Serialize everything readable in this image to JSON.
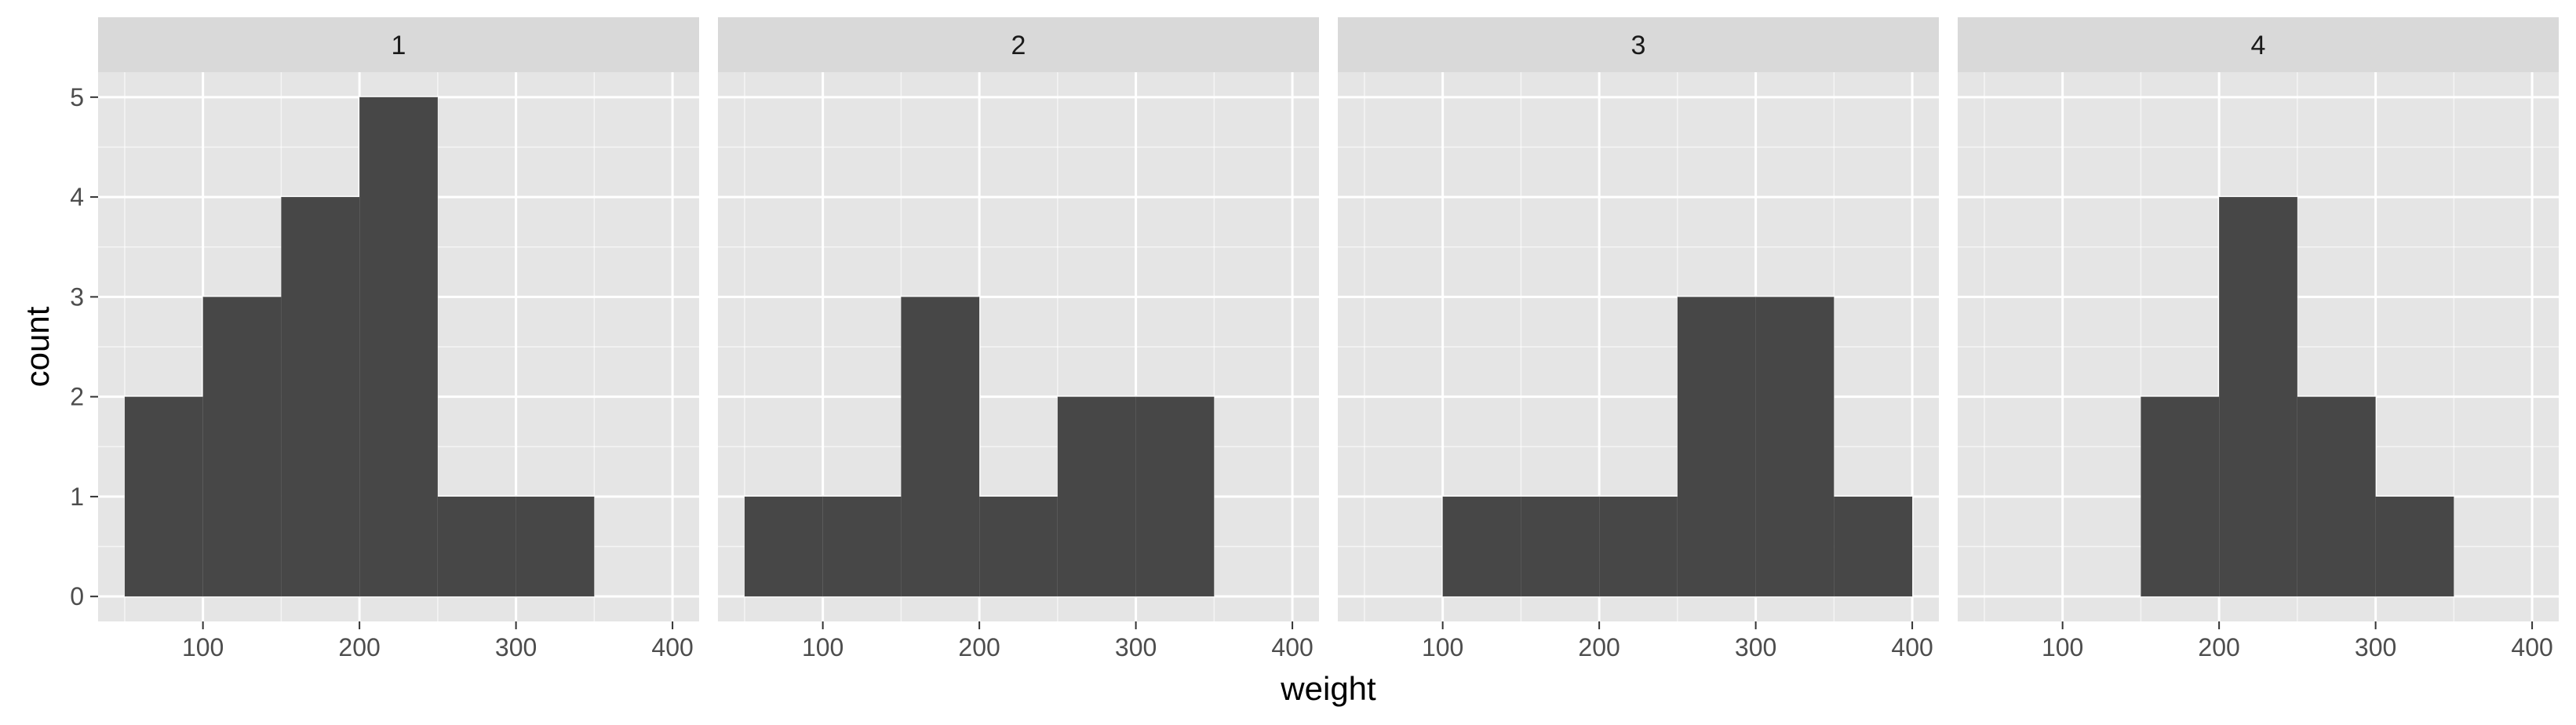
{
  "chart_data": {
    "type": "bar",
    "facet_labels": [
      "1",
      "2",
      "3",
      "4"
    ],
    "xlabel": "weight",
    "ylabel": "count",
    "xlim": [
      33,
      417
    ],
    "ylim": [
      -0.25,
      5.25
    ],
    "x_ticks": [
      100,
      200,
      300,
      400
    ],
    "y_ticks": [
      0,
      1,
      2,
      3,
      4,
      5
    ],
    "bin_edges": [
      50,
      100,
      150,
      200,
      250,
      300,
      350,
      400
    ],
    "panels": [
      {
        "label": "1",
        "counts": [
          2,
          3,
          4,
          5,
          1,
          1,
          0
        ]
      },
      {
        "label": "2",
        "counts": [
          1,
          1,
          3,
          1,
          2,
          2,
          0
        ]
      },
      {
        "label": "3",
        "counts": [
          0,
          1,
          1,
          1,
          3,
          3,
          1
        ]
      },
      {
        "label": "4",
        "counts": [
          0,
          0,
          2,
          4,
          2,
          1,
          0
        ]
      }
    ],
    "grid": true,
    "colors": {
      "bar": "#474747",
      "panel_bg": "#e5e5e5",
      "strip_bg": "#d9d9d9",
      "grid_major": "#ffffff",
      "tick_label": "#4d4d4d"
    }
  }
}
